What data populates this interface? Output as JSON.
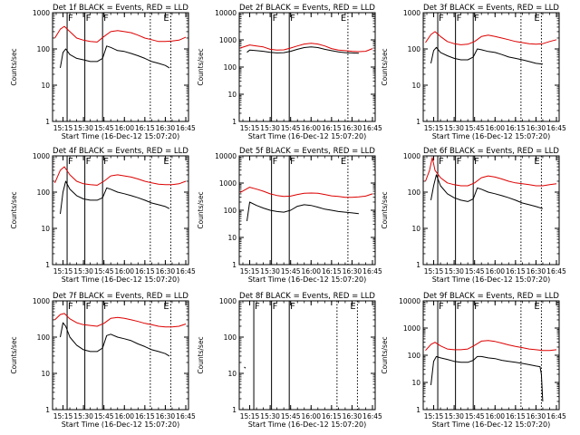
{
  "colors": {
    "events": "#000000",
    "lld": "#dd0000",
    "axis": "#000000",
    "background": "#ffffff"
  },
  "shared": {
    "xlabel": "Start Time (16-Dec-12 15:07:20)",
    "ylabel": "Counts/sec",
    "xticks": [
      "15:15",
      "15:30",
      "15:45",
      "16:00",
      "16:15",
      "16:30",
      "16:45"
    ],
    "yticks_1e4": [
      "1",
      "10",
      "100",
      "1000",
      "10000"
    ],
    "yticks_1e3": [
      "1",
      "10",
      "100",
      "1000"
    ],
    "marker_F": "F",
    "marker_E": "E"
  },
  "chart_data": [
    {
      "type": "line",
      "title": "Det 1f BLACK = Events, RED = LLD",
      "ylog": true,
      "ylim": [
        1,
        1000
      ],
      "xlim": [
        "15:07:20",
        "16:47:00"
      ],
      "solid_lines": [
        "15:18:00",
        "15:31:00",
        "15:44:00"
      ],
      "dotted_lines": [
        "16:19:00",
        "16:34:00"
      ],
      "series": [
        {
          "name": "RED = LLD",
          "color": "lld",
          "x": [
            "15:09",
            "15:13",
            "15:16",
            "15:20",
            "15:25",
            "15:30",
            "15:35",
            "15:40",
            "15:45",
            "15:50",
            "15:55",
            "16:00",
            "16:05",
            "16:10",
            "16:15",
            "16:20",
            "16:25",
            "16:30",
            "16:35",
            "16:40",
            "16:45"
          ],
          "y": [
            200,
            350,
            420,
            300,
            200,
            175,
            160,
            155,
            220,
            300,
            320,
            300,
            280,
            240,
            200,
            180,
            160,
            160,
            165,
            175,
            210
          ]
        },
        {
          "name": "BLACK = Events",
          "color": "events",
          "x": [
            "15:13",
            "15:15",
            "15:17",
            "15:20",
            "15:25",
            "15:30",
            "15:35",
            "15:40",
            "15:44",
            "15:47",
            "15:50",
            "15:55",
            "16:00",
            "16:05",
            "16:10",
            "16:15",
            "16:20",
            "16:25",
            "16:30",
            "16:33"
          ],
          "y": [
            30,
            80,
            100,
            70,
            55,
            50,
            45,
            45,
            55,
            120,
            110,
            90,
            85,
            75,
            65,
            55,
            45,
            40,
            35,
            30
          ]
        }
      ]
    },
    {
      "type": "line",
      "title": "Det 2f BLACK = Events, RED = LLD",
      "ylog": true,
      "ylim": [
        1,
        10000
      ],
      "xlim": [
        "15:07:20",
        "16:47:00"
      ],
      "solid_lines": [
        "15:31:00",
        "15:44:00"
      ],
      "dotted_lines": [
        "16:27:00"
      ],
      "series": [
        {
          "name": "RED = LLD",
          "color": "lld",
          "x": [
            "15:08",
            "15:15",
            "15:20",
            "15:25",
            "15:30",
            "15:35",
            "15:40",
            "15:45",
            "15:50",
            "15:55",
            "16:00",
            "16:05",
            "16:10",
            "16:15",
            "16:20",
            "16:25",
            "16:30",
            "16:35",
            "16:40",
            "16:45"
          ],
          "y": [
            500,
            650,
            600,
            550,
            450,
            420,
            430,
            500,
            600,
            700,
            750,
            700,
            600,
            480,
            420,
            400,
            380,
            370,
            380,
            480
          ]
        },
        {
          "name": "BLACK = Events",
          "color": "events",
          "x": [
            "15:13",
            "15:15",
            "15:20",
            "15:25",
            "15:30",
            "15:35",
            "15:40",
            "15:45",
            "15:50",
            "15:55",
            "16:00",
            "16:05",
            "16:10",
            "16:15",
            "16:20",
            "16:25",
            "16:30",
            "16:35"
          ],
          "y": [
            350,
            420,
            400,
            380,
            350,
            330,
            340,
            380,
            450,
            520,
            550,
            520,
            450,
            400,
            360,
            340,
            330,
            320
          ]
        }
      ]
    },
    {
      "type": "line",
      "title": "Det 3f BLACK = Events, RED = LLD",
      "ylog": true,
      "ylim": [
        1,
        1000
      ],
      "xlim": [
        "15:07:20",
        "16:47:00"
      ],
      "solid_lines": [
        "15:18:00",
        "15:31:00",
        "15:44:00"
      ],
      "dotted_lines": [
        "16:19:00",
        "16:34:00"
      ],
      "series": [
        {
          "name": "RED = LLD",
          "color": "lld",
          "x": [
            "15:09",
            "15:13",
            "15:16",
            "15:20",
            "15:25",
            "15:30",
            "15:35",
            "15:40",
            "15:45",
            "15:50",
            "15:55",
            "16:00",
            "16:05",
            "16:10",
            "16:15",
            "16:20",
            "16:25",
            "16:30",
            "16:35",
            "16:40",
            "16:45"
          ],
          "y": [
            150,
            250,
            300,
            220,
            160,
            140,
            130,
            135,
            160,
            220,
            240,
            220,
            200,
            180,
            160,
            150,
            140,
            135,
            140,
            160,
            180
          ]
        },
        {
          "name": "BLACK = Events",
          "color": "events",
          "x": [
            "15:13",
            "15:15",
            "15:17",
            "15:20",
            "15:25",
            "15:30",
            "15:35",
            "15:40",
            "15:44",
            "15:47",
            "15:50",
            "15:55",
            "16:00",
            "16:05",
            "16:10",
            "16:15",
            "16:20",
            "16:25",
            "16:30",
            "16:35"
          ],
          "y": [
            40,
            90,
            110,
            80,
            65,
            55,
            50,
            50,
            60,
            100,
            95,
            85,
            80,
            70,
            60,
            55,
            50,
            45,
            40,
            38
          ]
        }
      ]
    },
    {
      "type": "line",
      "title": "Det 4f BLACK = Events, RED = LLD",
      "ylog": true,
      "ylim": [
        1,
        1000
      ],
      "xlim": [
        "15:07:20",
        "16:47:00"
      ],
      "solid_lines": [
        "15:18:00",
        "15:31:00",
        "15:44:00"
      ],
      "dotted_lines": [
        "16:19:00",
        "16:34:00"
      ],
      "series": [
        {
          "name": "RED = LLD",
          "color": "lld",
          "x": [
            "15:09",
            "15:13",
            "15:16",
            "15:20",
            "15:25",
            "15:30",
            "15:35",
            "15:40",
            "15:45",
            "15:50",
            "15:55",
            "16:00",
            "16:05",
            "16:10",
            "16:15",
            "16:20",
            "16:25",
            "16:30",
            "16:35",
            "16:40",
            "16:45"
          ],
          "y": [
            180,
            400,
            500,
            300,
            200,
            170,
            160,
            155,
            200,
            280,
            300,
            280,
            260,
            230,
            200,
            180,
            165,
            160,
            160,
            170,
            200
          ]
        },
        {
          "name": "BLACK = Events",
          "color": "events",
          "x": [
            "15:13",
            "15:15",
            "15:17",
            "15:20",
            "15:25",
            "15:30",
            "15:35",
            "15:40",
            "15:44",
            "15:47",
            "15:50",
            "15:55",
            "16:00",
            "16:05",
            "16:10",
            "16:15",
            "16:20",
            "16:25",
            "16:30",
            "16:33"
          ],
          "y": [
            25,
            100,
            200,
            120,
            80,
            65,
            60,
            60,
            70,
            130,
            120,
            100,
            90,
            80,
            70,
            60,
            50,
            45,
            40,
            35
          ]
        }
      ]
    },
    {
      "type": "line",
      "title": "Det 5f BLACK = Events, RED = LLD",
      "ylog": true,
      "ylim": [
        1,
        10000
      ],
      "xlim": [
        "15:07:20",
        "16:47:00"
      ],
      "solid_lines": [
        "15:31:00",
        "15:44:00"
      ],
      "dotted_lines": [
        "16:27:00"
      ],
      "series": [
        {
          "name": "RED = LLD",
          "color": "lld",
          "x": [
            "15:08",
            "15:15",
            "15:20",
            "15:25",
            "15:30",
            "15:35",
            "15:40",
            "15:45",
            "15:50",
            "15:55",
            "16:00",
            "16:05",
            "16:10",
            "16:15",
            "16:20",
            "16:25",
            "16:30",
            "16:35",
            "16:40",
            "16:45"
          ],
          "y": [
            450,
            700,
            600,
            500,
            400,
            350,
            320,
            330,
            380,
            420,
            430,
            420,
            380,
            340,
            320,
            300,
            300,
            310,
            330,
            400
          ]
        },
        {
          "name": "BLACK = Events",
          "color": "events",
          "x": [
            "15:13",
            "15:15",
            "15:20",
            "15:25",
            "15:30",
            "15:35",
            "15:40",
            "15:45",
            "15:50",
            "15:55",
            "16:00",
            "16:05",
            "16:10",
            "16:15",
            "16:20",
            "16:25",
            "16:30",
            "16:35"
          ],
          "y": [
            40,
            200,
            150,
            120,
            100,
            90,
            85,
            100,
            140,
            160,
            150,
            130,
            110,
            100,
            90,
            85,
            80,
            75
          ]
        }
      ]
    },
    {
      "type": "line",
      "title": "Det 6f BLACK = Events, RED = LLD",
      "ylog": true,
      "ylim": [
        1,
        1000
      ],
      "xlim": [
        "15:07:20",
        "16:47:00"
      ],
      "solid_lines": [
        "15:18:00",
        "15:31:00",
        "15:44:00"
      ],
      "dotted_lines": [
        "16:19:00",
        "16:34:00"
      ],
      "series": [
        {
          "name": "RED = LLD",
          "color": "lld",
          "x": [
            "15:09",
            "15:12",
            "15:14",
            "15:16",
            "15:20",
            "15:25",
            "15:30",
            "15:35",
            "15:40",
            "15:45",
            "15:50",
            "15:55",
            "16:00",
            "16:05",
            "16:10",
            "16:15",
            "16:20",
            "16:25",
            "16:30",
            "16:35",
            "16:40",
            "16:45"
          ],
          "y": [
            200,
            400,
            900,
            400,
            250,
            180,
            160,
            150,
            150,
            180,
            250,
            280,
            260,
            230,
            200,
            180,
            170,
            160,
            150,
            150,
            160,
            170
          ]
        },
        {
          "name": "BLACK = Events",
          "color": "events",
          "x": [
            "15:13",
            "15:15",
            "15:17",
            "15:20",
            "15:25",
            "15:30",
            "15:35",
            "15:40",
            "15:44",
            "15:47",
            "15:50",
            "15:55",
            "16:00",
            "16:05",
            "16:10",
            "16:15",
            "16:20",
            "16:25",
            "16:30",
            "16:35"
          ],
          "y": [
            60,
            150,
            300,
            150,
            90,
            70,
            60,
            55,
            65,
            130,
            120,
            100,
            90,
            80,
            70,
            60,
            50,
            45,
            40,
            35
          ]
        }
      ]
    },
    {
      "type": "line",
      "title": "Det 7f BLACK = Events, RED = LLD",
      "ylog": true,
      "ylim": [
        1,
        1000
      ],
      "xlim": [
        "15:07:20",
        "16:47:00"
      ],
      "solid_lines": [
        "15:18:00",
        "15:31:00",
        "15:44:00"
      ],
      "dotted_lines": [
        "16:19:00",
        "16:34:00"
      ],
      "series": [
        {
          "name": "RED = LLD",
          "color": "lld",
          "x": [
            "15:09",
            "15:13",
            "15:16",
            "15:20",
            "15:25",
            "15:30",
            "15:35",
            "15:40",
            "15:45",
            "15:50",
            "15:55",
            "16:00",
            "16:05",
            "16:10",
            "16:15",
            "16:20",
            "16:25",
            "16:30",
            "16:35",
            "16:40",
            "16:45"
          ],
          "y": [
            300,
            420,
            450,
            320,
            250,
            220,
            210,
            200,
            240,
            330,
            350,
            330,
            300,
            270,
            240,
            220,
            200,
            190,
            190,
            200,
            230
          ]
        },
        {
          "name": "BLACK = Events",
          "color": "events",
          "x": [
            "15:13",
            "15:15",
            "15:17",
            "15:20",
            "15:25",
            "15:30",
            "15:35",
            "15:40",
            "15:44",
            "15:47",
            "15:50",
            "15:55",
            "16:00",
            "16:05",
            "16:10",
            "16:15",
            "16:20",
            "16:25",
            "16:30",
            "16:33"
          ],
          "y": [
            100,
            250,
            200,
            100,
            60,
            45,
            40,
            40,
            50,
            110,
            120,
            100,
            90,
            80,
            65,
            55,
            45,
            40,
            35,
            30
          ]
        }
      ]
    },
    {
      "type": "line",
      "title": "Det 8f BLACK = Events, RED = LLD",
      "ylog": true,
      "ylim": [
        1,
        1000
      ],
      "xlim": [
        "15:07:20",
        "16:47:00"
      ],
      "solid_lines": [
        "15:18:00",
        "15:31:00",
        "15:44:00"
      ],
      "dotted_lines": [
        "16:19:00",
        "16:34:00"
      ],
      "series": [
        {
          "name": "BLACK = Events",
          "color": "events",
          "x": [
            "15:11",
            "15:12"
          ],
          "y": [
            15,
            14
          ]
        }
      ]
    },
    {
      "type": "line",
      "title": "Det 9f BLACK = Events, RED = LLD",
      "ylog": true,
      "ylim": [
        1,
        10000
      ],
      "xlim": [
        "15:07:20",
        "16:47:00"
      ],
      "solid_lines": [
        "15:18:00",
        "15:31:00",
        "15:44:00"
      ],
      "dotted_lines": [
        "16:19:00",
        "16:34:00"
      ],
      "series": [
        {
          "name": "RED = LLD",
          "color": "lld",
          "x": [
            "15:09",
            "15:13",
            "15:16",
            "15:20",
            "15:25",
            "15:30",
            "15:35",
            "15:40",
            "15:45",
            "15:50",
            "15:55",
            "16:00",
            "16:05",
            "16:10",
            "16:15",
            "16:20",
            "16:25",
            "16:30",
            "16:35",
            "16:40",
            "16:45"
          ],
          "y": [
            150,
            250,
            300,
            220,
            170,
            160,
            160,
            170,
            230,
            330,
            350,
            320,
            280,
            240,
            210,
            190,
            170,
            160,
            150,
            150,
            160
          ]
        },
        {
          "name": "BLACK = Events",
          "color": "events",
          "x": [
            "15:13",
            "15:15",
            "15:17",
            "15:20",
            "15:25",
            "15:30",
            "15:35",
            "15:40",
            "15:44",
            "15:47",
            "15:50",
            "15:55",
            "16:00",
            "16:05",
            "16:10",
            "16:15",
            "16:20",
            "16:25",
            "16:30",
            "16:33",
            "16:34",
            "16:35"
          ],
          "y": [
            8,
            60,
            90,
            80,
            70,
            60,
            55,
            55,
            65,
            90,
            90,
            80,
            75,
            65,
            60,
            55,
            50,
            45,
            40,
            38,
            20,
            2
          ]
        }
      ]
    }
  ]
}
